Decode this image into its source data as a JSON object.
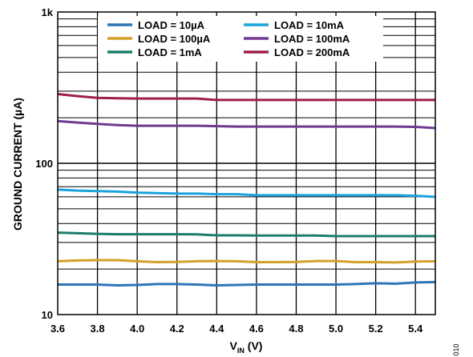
{
  "chart_data": {
    "type": "line",
    "xlabel_main": "V",
    "xlabel_sub": "IN",
    "xlabel_unit": " (V)",
    "ylabel": "GROUND CURRENT (µA)",
    "xlim": [
      3.6,
      5.5
    ],
    "ylim": [
      10,
      1000
    ],
    "yscale": "log",
    "grid": true,
    "legend_position": "top",
    "x_ticks": [
      3.6,
      3.8,
      4.0,
      4.2,
      4.4,
      4.6,
      4.8,
      5.0,
      5.2,
      5.4
    ],
    "x_tick_labels": [
      "3.6",
      "3.8",
      "4.0",
      "4.2",
      "4.4",
      "4.6",
      "4.8",
      "5.0",
      "5.2",
      "5.4"
    ],
    "y_tick_labels": [
      {
        "value": 10,
        "label": "10"
      },
      {
        "value": 100,
        "label": "100"
      },
      {
        "value": 1000,
        "label": "1k"
      }
    ],
    "x": [
      3.6,
      3.7,
      3.8,
      3.9,
      4.0,
      4.1,
      4.2,
      4.3,
      4.4,
      4.5,
      4.6,
      4.7,
      4.8,
      4.9,
      5.0,
      5.1,
      5.2,
      5.3,
      5.4,
      5.5
    ],
    "series": [
      {
        "name": "LOAD = 10µA",
        "color": "#2e75b6",
        "values": [
          15.8,
          15.8,
          15.8,
          15.6,
          15.7,
          15.9,
          15.9,
          15.8,
          15.6,
          15.7,
          15.8,
          15.8,
          15.8,
          15.8,
          15.8,
          15.9,
          16.1,
          16.0,
          16.3,
          16.4
        ]
      },
      {
        "name": "LOAD = 10mA",
        "color": "#1ba3dc",
        "values": [
          67,
          66,
          65.5,
          65,
          64,
          63.5,
          63,
          63,
          62.5,
          62.5,
          61.5,
          61.5,
          61.5,
          61.5,
          61.5,
          61.5,
          61.5,
          61.5,
          61,
          60
        ]
      },
      {
        "name": "LOAD = 100µA",
        "color": "#d4a02a",
        "values": [
          22.5,
          22.8,
          22.9,
          22.9,
          22.5,
          22.2,
          22.3,
          22.5,
          22.6,
          22.5,
          22.2,
          22.2,
          22.3,
          22.6,
          22.6,
          22.2,
          22.2,
          22.1,
          22.4,
          22.5
        ]
      },
      {
        "name": "LOAD = 100mA",
        "color": "#6f3b91",
        "values": [
          190,
          186,
          182,
          179,
          177,
          177,
          177,
          177,
          176,
          175,
          175,
          175,
          175,
          175,
          175,
          175,
          175,
          175,
          174,
          171
        ]
      },
      {
        "name": "LOAD = 1mA",
        "color": "#1b7d6d",
        "values": [
          34.8,
          34.5,
          34.2,
          34.0,
          34.0,
          34.0,
          34.0,
          33.9,
          33.4,
          33.4,
          33.3,
          33.3,
          33.3,
          33.3,
          33.0,
          33.0,
          33.0,
          33.0,
          33.0,
          33.0
        ]
      },
      {
        "name": "LOAD = 200mA",
        "color": "#a01d4d",
        "values": [
          287,
          278,
          271,
          269,
          268,
          268,
          268,
          268,
          262,
          262,
          262,
          262,
          262,
          262,
          262,
          262,
          262,
          262,
          262,
          262
        ]
      }
    ]
  },
  "figure_id": "010"
}
